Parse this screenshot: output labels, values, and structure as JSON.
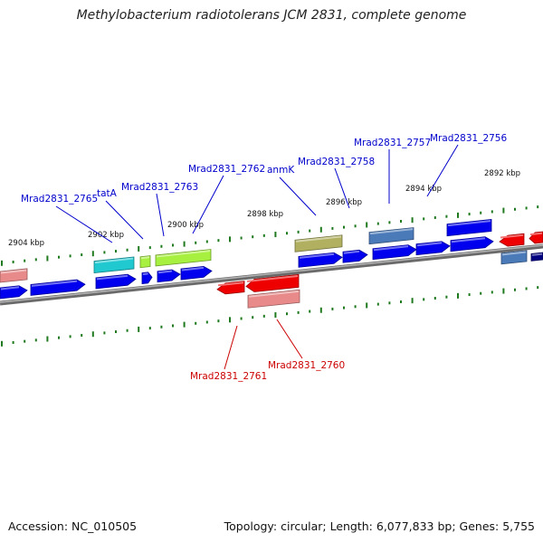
{
  "title": "Methylobacterium radiotolerans JCM 2831, complete genome",
  "footer": {
    "accession": "Accession: NC_010505",
    "topology": "Topology: circular; Length: 6,077,833 bp; Genes: 5,755"
  },
  "colors": {
    "background": "#ffffff",
    "backbone": "#8a8a8a",
    "tick": "#1f7a1f",
    "label_forward": "#0000cc",
    "label_reverse": "#cc0000",
    "cds_blue": "#0000ee",
    "rna_red": "#ee0000",
    "pink": "#e88a8a",
    "cyan": "#20c8d0",
    "lime": "#a8f040",
    "olive": "#b0b060",
    "steel": "#4a7ab8"
  },
  "ruler_labels": [
    "2904 kbp",
    "2902 kbp",
    "2900 kbp",
    "2898 kbp",
    "2896 kbp",
    "2894 kbp",
    "2892 kbp"
  ],
  "forward_labels": [
    "Mrad2831_2765",
    "tatA",
    "Mrad2831_2763",
    "Mrad2831_2762",
    "anmK",
    "Mrad2831_2758",
    "Mrad2831_2757",
    "Mrad2831_2756"
  ],
  "reverse_labels": [
    "Mrad2831_2761",
    "Mrad2831_2760"
  ]
}
